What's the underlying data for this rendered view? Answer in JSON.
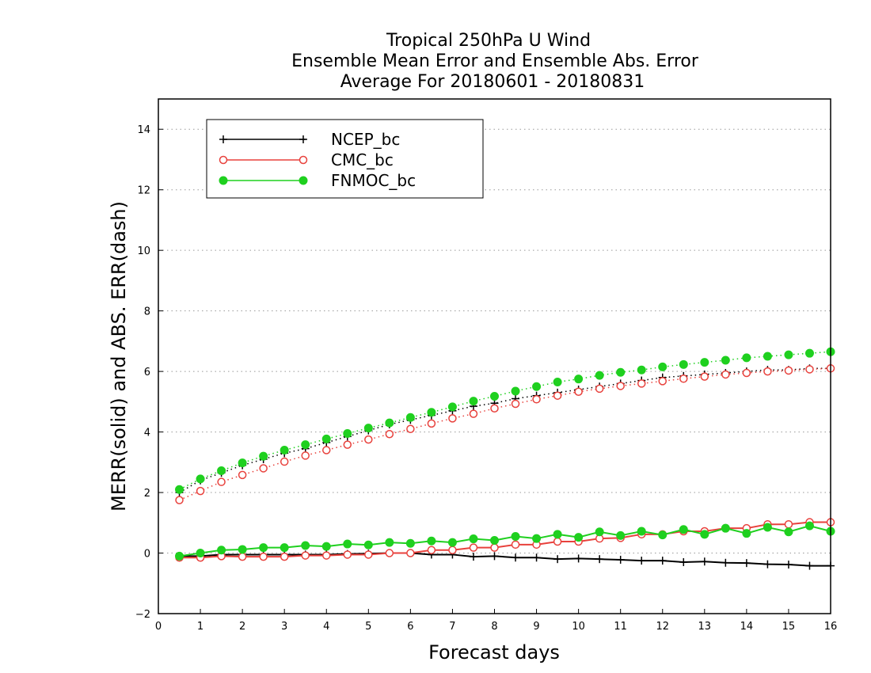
{
  "chart_data": {
    "type": "line",
    "title": [
      "Tropical 250hPa U Wind",
      "Ensemble Mean Error and Ensemble Abs. Error",
      "Average For 20180601 - 20180831"
    ],
    "xlabel": "Forecast days",
    "ylabel": "MERR(solid) and ABS. ERR(dash)",
    "xlim": [
      0,
      16
    ],
    "ylim": [
      -2,
      15
    ],
    "xticks": [
      "0",
      "1",
      "2",
      "3",
      "4",
      "5",
      "6",
      "7",
      "8",
      "9",
      "10",
      "11",
      "12",
      "13",
      "14",
      "15",
      "16"
    ],
    "yticks": [
      "−2",
      "0",
      "2",
      "4",
      "6",
      "8",
      "10",
      "12",
      "14"
    ],
    "ytick_values": [
      -2,
      0,
      2,
      4,
      6,
      8,
      10,
      12,
      14
    ],
    "grid": "horizontal dotted",
    "legend_position": "top-left",
    "x": [
      0.5,
      1,
      1.5,
      2,
      2.5,
      3,
      3.5,
      4,
      4.5,
      5,
      5.5,
      6,
      6.5,
      7,
      7.5,
      8,
      8.5,
      9,
      9.5,
      10,
      10.5,
      11,
      11.5,
      12,
      12.5,
      13,
      13.5,
      14,
      14.5,
      15,
      15.5,
      16
    ],
    "series": [
      {
        "name": "NCEP_bc",
        "color": "#000000",
        "marker": "plus",
        "merr": [
          -0.1,
          -0.1,
          -0.05,
          -0.05,
          -0.05,
          -0.05,
          -0.05,
          -0.05,
          -0.03,
          -0.02,
          0,
          0,
          -0.05,
          -0.05,
          -0.12,
          -0.1,
          -0.15,
          -0.15,
          -0.2,
          -0.18,
          -0.2,
          -0.22,
          -0.25,
          -0.25,
          -0.3,
          -0.28,
          -0.32,
          -0.33,
          -0.37,
          -0.38,
          -0.42,
          -0.42
        ],
        "abs_err": [
          2.0,
          2.4,
          2.65,
          2.9,
          3.1,
          3.3,
          3.45,
          3.65,
          3.85,
          4.05,
          4.25,
          4.4,
          4.55,
          4.7,
          4.85,
          4.95,
          5.1,
          5.2,
          5.3,
          5.4,
          5.5,
          5.6,
          5.7,
          5.8,
          5.85,
          5.9,
          5.95,
          6.0,
          6.05,
          6.05,
          6.1,
          6.1
        ]
      },
      {
        "name": "CMC_bc",
        "color": "#e8413c",
        "marker": "open-circle",
        "merr": [
          -0.15,
          -0.15,
          -0.1,
          -0.12,
          -0.12,
          -0.12,
          -0.08,
          -0.08,
          -0.05,
          -0.05,
          0,
          0,
          0.1,
          0.1,
          0.18,
          0.18,
          0.28,
          0.28,
          0.38,
          0.38,
          0.48,
          0.5,
          0.62,
          0.62,
          0.72,
          0.72,
          0.82,
          0.82,
          0.95,
          0.95,
          1.02,
          1.02
        ],
        "abs_err": [
          1.75,
          2.05,
          2.35,
          2.58,
          2.8,
          3.02,
          3.22,
          3.4,
          3.58,
          3.75,
          3.93,
          4.1,
          4.28,
          4.45,
          4.6,
          4.78,
          4.93,
          5.08,
          5.2,
          5.33,
          5.43,
          5.52,
          5.6,
          5.68,
          5.76,
          5.83,
          5.9,
          5.95,
          6.0,
          6.03,
          6.07,
          6.1
        ]
      },
      {
        "name": "FNMOC_bc",
        "color": "#1fd01f",
        "marker": "filled-circle",
        "merr": [
          -0.1,
          0,
          0.1,
          0.12,
          0.18,
          0.18,
          0.25,
          0.22,
          0.3,
          0.27,
          0.35,
          0.32,
          0.4,
          0.35,
          0.47,
          0.42,
          0.55,
          0.48,
          0.62,
          0.52,
          0.7,
          0.58,
          0.72,
          0.6,
          0.78,
          0.62,
          0.82,
          0.65,
          0.85,
          0.7,
          0.9,
          0.72
        ],
        "abs_err": [
          2.1,
          2.45,
          2.72,
          2.98,
          3.2,
          3.4,
          3.58,
          3.77,
          3.95,
          4.13,
          4.3,
          4.48,
          4.65,
          4.83,
          5.02,
          5.18,
          5.35,
          5.5,
          5.65,
          5.75,
          5.87,
          5.97,
          6.05,
          6.15,
          6.23,
          6.3,
          6.37,
          6.45,
          6.5,
          6.55,
          6.6,
          6.65
        ]
      }
    ]
  }
}
